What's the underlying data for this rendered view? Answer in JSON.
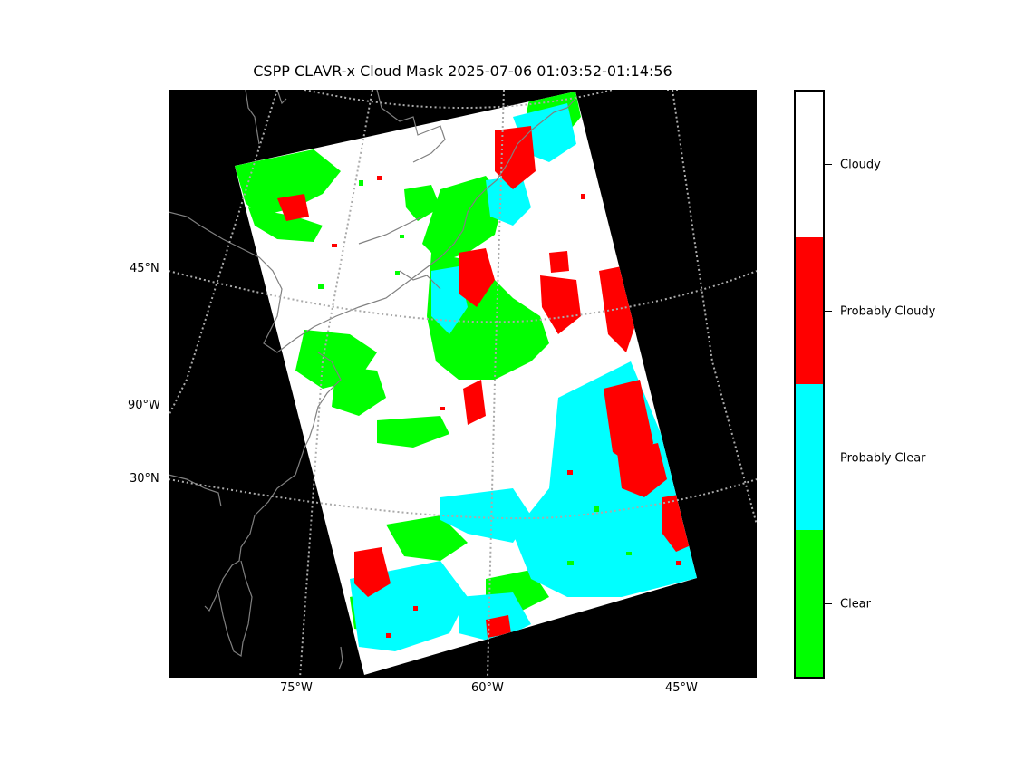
{
  "title": "CSPP CLAVR-x Cloud Mask 2025-07-06 01:03:52-01:14:56",
  "map": {
    "lat_labels": [
      "45°N",
      "90°W",
      "30°N"
    ],
    "lon_labels": [
      "75°W",
      "60°W",
      "45°W"
    ],
    "colors": {
      "background": "#000000",
      "coastline": "#808080",
      "gridline": "#aaaaaa",
      "clear": "#00ff00",
      "probably_clear": "#00ffff",
      "probably_cloudy": "#ff0000",
      "cloudy": "#ffffff"
    }
  },
  "legend": {
    "categories": [
      "Cloudy",
      "Probably Cloudy",
      "Probably Clear",
      "Clear"
    ],
    "colors": [
      "#ffffff",
      "#ff0000",
      "#00ffff",
      "#00ff00"
    ]
  }
}
